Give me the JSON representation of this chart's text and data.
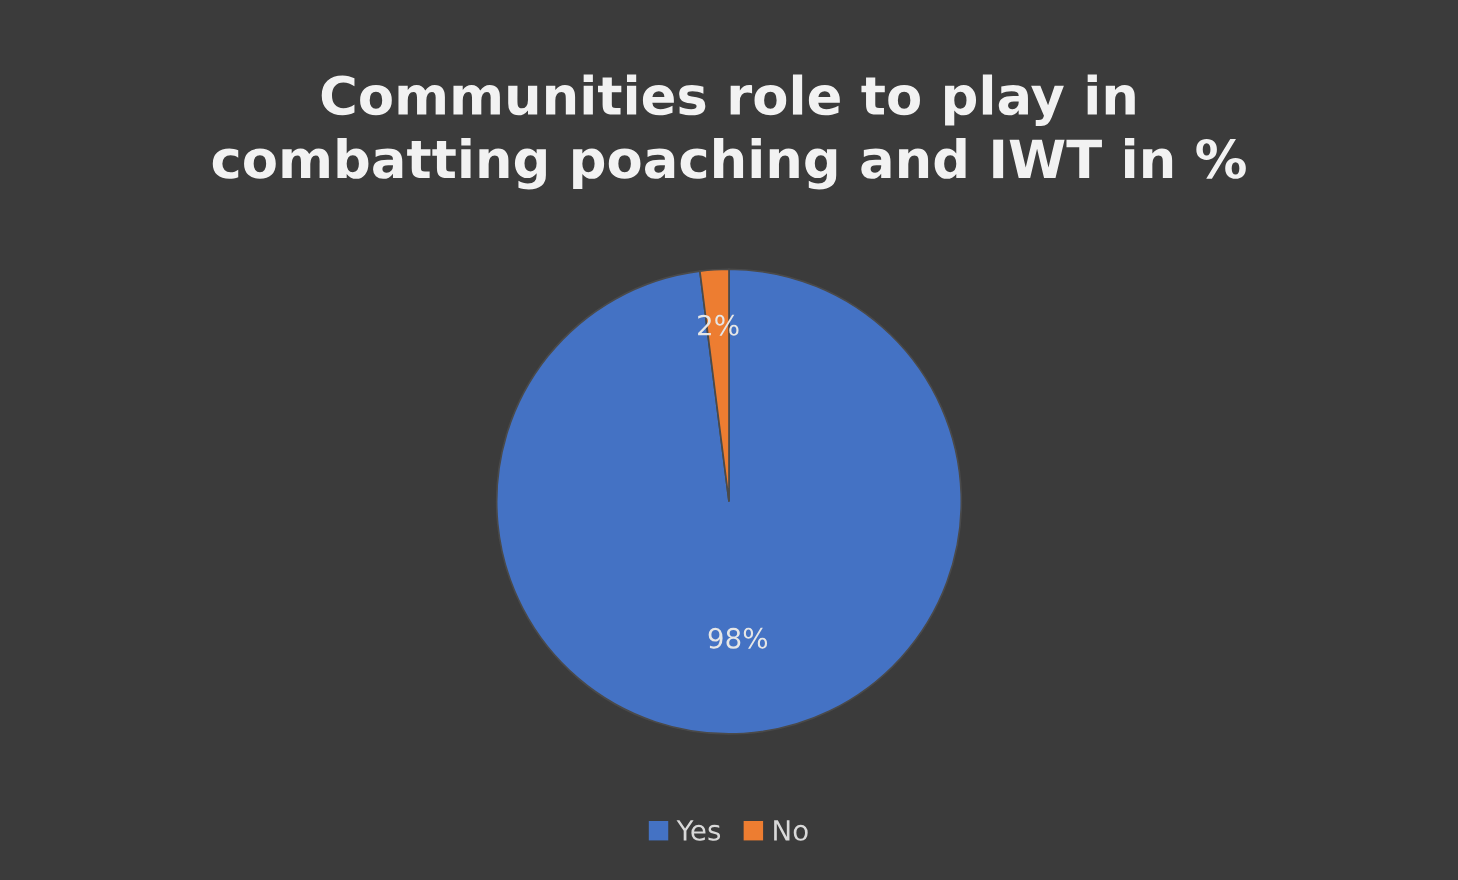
{
  "chart_data": {
    "type": "pie",
    "title": "Communities role to play in\ncombatting poaching and IWT in %",
    "categories": [
      "Yes",
      "No"
    ],
    "values": [
      98,
      2
    ],
    "colors": [
      "#4472c4",
      "#ed7d31"
    ],
    "value_labels": [
      "98%",
      "2%"
    ],
    "legend": "bottom"
  }
}
